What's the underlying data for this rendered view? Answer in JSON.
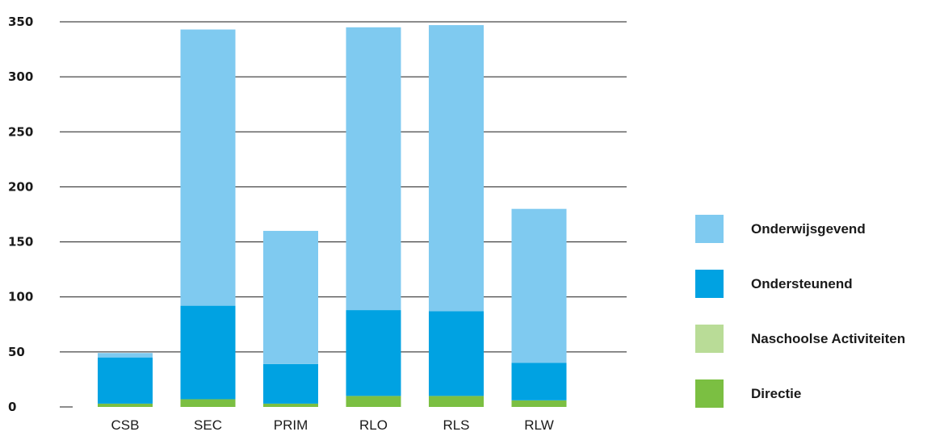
{
  "chart_data": {
    "type": "bar",
    "stacked": true,
    "categories": [
      "CSB",
      "SEC",
      "PRIM",
      "RLO",
      "RLS",
      "RLW"
    ],
    "series": [
      {
        "name": "Directie",
        "color": "#7bbf42",
        "values": [
          3,
          7,
          3,
          10,
          10,
          6
        ]
      },
      {
        "name": "Naschoolse Activiteiten",
        "color": "#b9dc97",
        "values": [
          0,
          0,
          0,
          0,
          0,
          0
        ]
      },
      {
        "name": "Ondersteunend",
        "color": "#00a2e2",
        "values": [
          42,
          85,
          36,
          78,
          77,
          34
        ]
      },
      {
        "name": "Onderwijsgevend",
        "color": "#7fcaf0",
        "values": [
          4,
          251,
          121,
          257,
          260,
          140
        ]
      }
    ],
    "legend_order": [
      "Onderwijsgevend",
      "Ondersteunend",
      "Naschoolse Activiteiten",
      "Directie"
    ],
    "y_ticks": [
      "0",
      "50",
      "100",
      "150",
      "200",
      "250",
      "300",
      "350"
    ],
    "ylim": [
      0,
      350
    ],
    "grid": true,
    "legend_position": "right"
  }
}
